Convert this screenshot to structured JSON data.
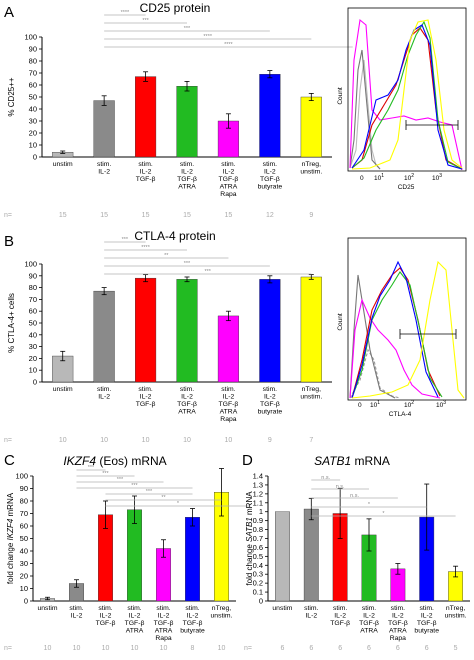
{
  "colors": {
    "unstim": "#b8b8b8",
    "stim_il2": "#8a8a8a",
    "tgfb": "#ff0000",
    "atra": "#22bb22",
    "rapa": "#ff00ff",
    "butyrate": "#0000ff",
    "ntreg": "#ffff00",
    "histo_unstim": "#bbbbbb",
    "histo_il2": "#777777",
    "ntreg_tgfb_red": "#dd0000"
  },
  "panels": [
    {
      "letter": "A",
      "title": "CD25 protein",
      "n_label": "n=",
      "histogram": {
        "count_label": "Count",
        "xlabel": "CD25",
        "ticks": [
          "0",
          "10",
          "10",
          "10"
        ],
        "ticks_sup": [
          "",
          "1",
          "2",
          "3"
        ]
      }
    },
    {
      "letter": "B",
      "title": "CTLA-4 protein",
      "n_label": "n=",
      "histogram": {
        "count_label": "Count",
        "xlabel": "CTLA-4",
        "ticks": [
          "0",
          "10",
          "10",
          "10"
        ],
        "ticks_sup": [
          "",
          "1",
          "2",
          "3"
        ]
      }
    },
    {
      "letter": "C",
      "title_gene": "IKZF4",
      "title_rest": " (Eos) mRNA",
      "n_label": "n="
    },
    {
      "letter": "D",
      "title_gene": "SATB1",
      "title_rest": " mRNA",
      "n_label": "n="
    }
  ],
  "chart_data": [
    {
      "type": "bar",
      "id": "A",
      "title": "CD25 protein",
      "ylabel": "% CD25++",
      "ylim": [
        0,
        100
      ],
      "yticks": [
        "0",
        "10",
        "20",
        "30",
        "40",
        "50",
        "60",
        "70",
        "80",
        "90",
        "100"
      ],
      "categories": [
        [
          "unstim"
        ],
        [
          "stim.",
          "IL-2"
        ],
        [
          "stim.",
          "IL-2",
          "TGF-β"
        ],
        [
          "stim.",
          "IL-2",
          "TGF-β",
          "ATRA"
        ],
        [
          "stim.",
          "IL-2",
          "TGF-β",
          "ATRA",
          "Rapa"
        ],
        [
          "stim.",
          "IL-2",
          "TGF-β",
          "butyrate"
        ],
        [
          "nTreg,",
          "unstim."
        ]
      ],
      "values": [
        4,
        47,
        67,
        59,
        30,
        69,
        50
      ],
      "errors": [
        1,
        4,
        4,
        4,
        6,
        3,
        3
      ],
      "n": [
        "15",
        "15",
        "15",
        "15",
        "15",
        "12",
        "9"
      ],
      "significance": [
        {
          "from": 1,
          "to": 2,
          "label": "****"
        },
        {
          "from": 1,
          "to": 3,
          "label": "***"
        },
        {
          "from": 1,
          "to": 5,
          "label": "***"
        },
        {
          "from": 1,
          "to": 6,
          "label": "****"
        },
        {
          "from": 1,
          "to": 7,
          "label": "****"
        }
      ]
    },
    {
      "type": "bar",
      "id": "B",
      "title": "CTLA-4 protein",
      "ylabel": "% CTLA-4+ cells",
      "ylim": [
        0,
        100
      ],
      "yticks": [
        "0",
        "10",
        "20",
        "30",
        "40",
        "50",
        "60",
        "70",
        "80",
        "90",
        "100"
      ],
      "categories": [
        [
          "unstim"
        ],
        [
          "stim.",
          "IL-2"
        ],
        [
          "stim.",
          "IL-2",
          "TGF-β"
        ],
        [
          "stim.",
          "IL-2",
          "TGF-β",
          "ATRA"
        ],
        [
          "stim.",
          "IL-2",
          "TGF-β",
          "ATRA",
          "Rapa"
        ],
        [
          "stim.",
          "IL-2",
          "TGF-β",
          "butyrate"
        ],
        [
          "nTreg,",
          "unstim."
        ]
      ],
      "values": [
        22,
        77,
        88,
        87,
        56,
        87,
        89
      ],
      "errors": [
        4,
        3,
        3,
        2,
        4,
        3,
        2
      ],
      "n": [
        "10",
        "10",
        "10",
        "10",
        "10",
        "9",
        "7"
      ],
      "significance": [
        {
          "from": 1,
          "to": 2,
          "label": "***"
        },
        {
          "from": 1,
          "to": 3,
          "label": "****"
        },
        {
          "from": 1,
          "to": 4,
          "label": "**"
        },
        {
          "from": 1,
          "to": 5,
          "label": "***"
        },
        {
          "from": 1,
          "to": 6,
          "label": "***"
        }
      ]
    },
    {
      "type": "bar",
      "id": "C",
      "ylabel_pre": "fold change ",
      "ylabel_gene": "IKZF4",
      "ylabel_post": " mRNA",
      "ylim": [
        0,
        100
      ],
      "yticks": [
        "0",
        "10",
        "20",
        "30",
        "40",
        "50",
        "60",
        "70",
        "80",
        "90",
        "100"
      ],
      "categories": [
        [
          "unstim"
        ],
        [
          "stim.",
          "IL-2"
        ],
        [
          "stim.",
          "IL-2",
          "TGF-β"
        ],
        [
          "stim.",
          "IL-2",
          "TGF-β",
          "ATRA"
        ],
        [
          "stim.",
          "IL-2",
          "TGF-β",
          "ATRA",
          "Rapa"
        ],
        [
          "stim.",
          "IL-2",
          "TGF-β",
          "butyrate"
        ],
        [
          "nTreg,",
          "unstim."
        ]
      ],
      "values": [
        2,
        14,
        69,
        73,
        42,
        67,
        87
      ],
      "errors": [
        1,
        3,
        11,
        11,
        7,
        7,
        19
      ],
      "n": [
        "10",
        "10",
        "10",
        "10",
        "10",
        "8",
        "10"
      ],
      "significance": [
        {
          "from": 1,
          "to": 2,
          "label": "***"
        },
        {
          "from": 1,
          "to": 3,
          "label": "***"
        },
        {
          "from": 1,
          "to": 4,
          "label": "***"
        },
        {
          "from": 1,
          "to": 5,
          "label": "***"
        },
        {
          "from": 2,
          "to": 5,
          "label": "***"
        },
        {
          "from": 2,
          "to": 6,
          "label": "**"
        },
        {
          "from": 2,
          "to": 7,
          "label": "*"
        }
      ]
    },
    {
      "type": "bar",
      "id": "D",
      "ylabel_pre": "fold change ",
      "ylabel_gene": "SATB1",
      "ylabel_post": " mRNA",
      "ylim": [
        0,
        1.4
      ],
      "yticks": [
        "0",
        "0.1",
        "0.2",
        "0.3",
        "0.4",
        "0.5",
        "0.6",
        "0.7",
        "0.8",
        "0.9",
        "1",
        "1.1",
        "1.2",
        "1.3",
        "1.4"
      ],
      "categories": [
        [
          "unstim"
        ],
        [
          "stim.",
          "IL-2"
        ],
        [
          "stim.",
          "IL-2",
          "TGF-β"
        ],
        [
          "stim.",
          "IL-2",
          "TGF-β",
          "ATRA"
        ],
        [
          "stim.",
          "IL-2",
          "TGF-β",
          "ATRA",
          "Rapa"
        ],
        [
          "stim.",
          "IL-2",
          "TGF-β",
          "butyrate"
        ],
        [
          "nTreg,",
          "unstim."
        ]
      ],
      "values": [
        1.0,
        1.03,
        0.98,
        0.74,
        0.36,
        0.94,
        0.33
      ],
      "errors": [
        0,
        0.12,
        0.28,
        0.18,
        0.06,
        0.37,
        0.06
      ],
      "n": [
        "6",
        "6",
        "6",
        "6",
        "6",
        "6",
        "5"
      ],
      "significance": [
        {
          "from": 1,
          "to": 2,
          "label": "n.s."
        },
        {
          "from": 1,
          "to": 3,
          "label": "n.s."
        },
        {
          "from": 1,
          "to": 4,
          "label": "n.s."
        },
        {
          "from": 1,
          "to": 5,
          "label": "*"
        },
        {
          "from": 1,
          "to": 6,
          "label": "*"
        }
      ]
    }
  ]
}
